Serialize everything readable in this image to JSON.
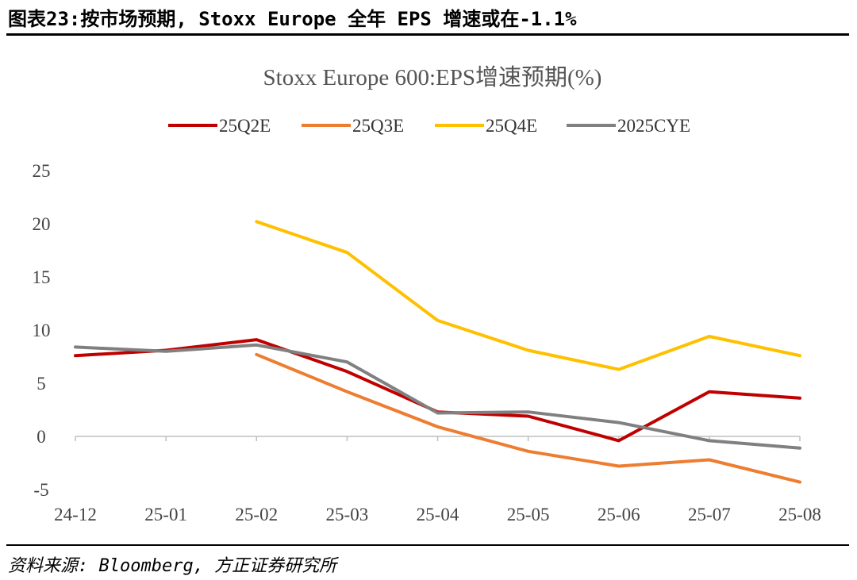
{
  "figure": {
    "title": "图表23:按市场预期, Stoxx Europe 全年 EPS 增速或在-1.1%",
    "source": "资料来源: Bloomberg, 方正证券研究所"
  },
  "chart_data": {
    "type": "line",
    "title": "Stoxx Europe 600:EPS增速预期(%)",
    "xlabel": "",
    "ylabel": "",
    "categories": [
      "24-12",
      "25-01",
      "25-02",
      "25-03",
      "25-04",
      "25-05",
      "25-06",
      "25-07",
      "25-08"
    ],
    "ylim": [
      -5,
      25
    ],
    "yticks": [
      -5,
      0,
      5,
      10,
      15,
      20,
      25
    ],
    "legend_position": "top",
    "grid": false,
    "series": [
      {
        "name": "25Q2E",
        "color": "#C00000",
        "values": [
          7.6,
          8.1,
          9.1,
          6.1,
          2.3,
          1.9,
          -0.4,
          4.2,
          3.6
        ]
      },
      {
        "name": "25Q3E",
        "color": "#ED7D31",
        "values": [
          null,
          null,
          7.7,
          4.2,
          0.9,
          -1.4,
          -2.8,
          -2.2,
          -4.3
        ]
      },
      {
        "name": "25Q4E",
        "color": "#FFC000",
        "values": [
          null,
          null,
          20.2,
          17.3,
          10.9,
          8.1,
          6.3,
          9.4,
          7.6
        ]
      },
      {
        "name": "2025CYE",
        "color": "#808080",
        "values": [
          8.4,
          8.0,
          8.6,
          7.0,
          2.2,
          2.3,
          1.3,
          -0.4,
          -1.1
        ]
      }
    ]
  }
}
